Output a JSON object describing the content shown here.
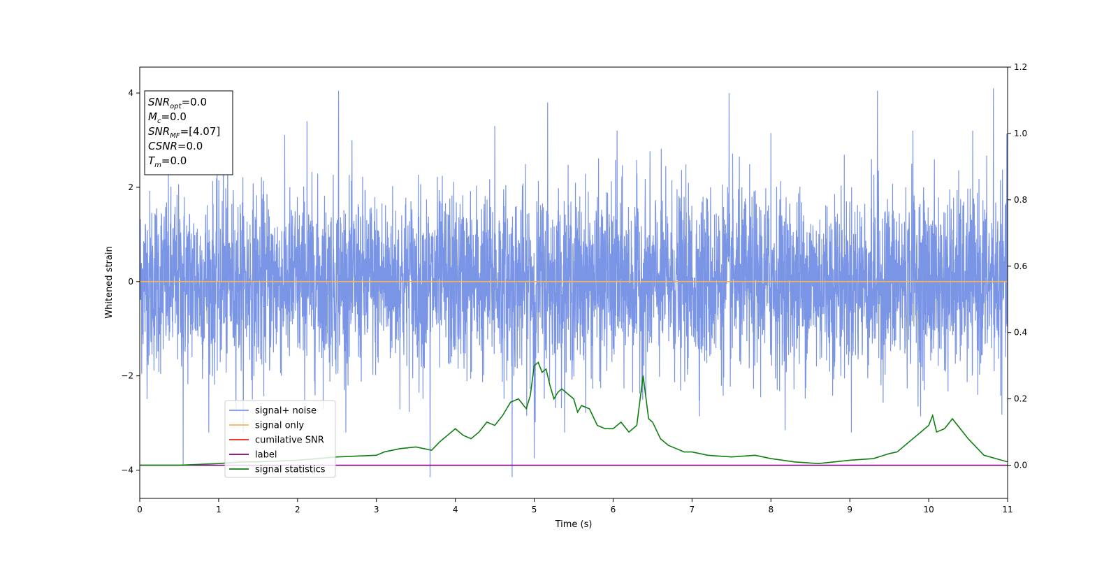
{
  "chart_data": {
    "type": "line",
    "title": "",
    "xlabel": "Time (s)",
    "ylabel": "Whitened strain",
    "xlim": [
      0,
      11
    ],
    "ylim": [
      -4.6,
      4.55
    ],
    "y2lim": [
      -0.1,
      1.2
    ],
    "xticks": [
      0,
      1,
      2,
      3,
      4,
      5,
      6,
      7,
      8,
      9,
      10,
      11
    ],
    "yticks": [
      -4,
      -2,
      0,
      2,
      4
    ],
    "y2ticks": [
      "0.0",
      "0.2",
      "0.4",
      "0.6",
      "0.8",
      "1.0",
      "1.2"
    ],
    "grid": false,
    "legend_position": "lower-left",
    "info_box": {
      "lines": [
        {
          "sym": "SNR",
          "sub": "opt",
          "value": "=0.0"
        },
        {
          "sym": "M",
          "sub": "c",
          "value": "=0.0"
        },
        {
          "sym": "SNR",
          "sub": "MF",
          "value": "=[4.07]"
        },
        {
          "sym": "CSNR",
          "sub": "",
          "value": "=0.0"
        },
        {
          "sym": "T",
          "sub": "m",
          "value": "=0.0"
        }
      ]
    },
    "series": [
      {
        "name": "signal+ noise",
        "color": "#7a94e6",
        "axis": "left",
        "kind": "noise",
        "envelope": {
          "typical": 1.7,
          "peaks": [
            [
              2.52,
              4.05
            ],
            [
              5.17,
              3.8
            ],
            [
              7.47,
              4.0
            ],
            [
              9.35,
              4.05
            ],
            [
              10.82,
              4.1
            ],
            [
              0.55,
              -3.9
            ],
            [
              3.68,
              -4.15
            ],
            [
              4.72,
              -4.15
            ],
            [
              5.0,
              -3.75
            ],
            [
              1.06,
              3.4
            ],
            [
              2.12,
              3.4
            ],
            [
              4.5,
              3.3
            ],
            [
              6.05,
              3.2
            ],
            [
              8.0,
              3.15
            ],
            [
              9.8,
              3.2
            ]
          ]
        }
      },
      {
        "name": "signal only",
        "color": "#f5b455",
        "axis": "left",
        "x": [
          0,
          11
        ],
        "y": [
          0,
          0
        ]
      },
      {
        "name": "cumilative SNR",
        "color": "#e8201b",
        "axis": "left",
        "x": [],
        "y": []
      },
      {
        "name": "label",
        "color": "#800080",
        "axis": "right",
        "x": [
          0,
          11
        ],
        "y": [
          0,
          0
        ]
      },
      {
        "name": "signal statistics",
        "color": "#0f7d0f",
        "axis": "right",
        "x": [
          0,
          0.5,
          1.0,
          1.3,
          1.5,
          2.0,
          2.5,
          3.0,
          3.1,
          3.3,
          3.5,
          3.7,
          3.8,
          3.9,
          4.0,
          4.1,
          4.2,
          4.3,
          4.4,
          4.5,
          4.6,
          4.7,
          4.8,
          4.9,
          4.95,
          5.0,
          5.05,
          5.1,
          5.15,
          5.2,
          5.25,
          5.3,
          5.35,
          5.4,
          5.5,
          5.55,
          5.6,
          5.7,
          5.8,
          5.9,
          6.0,
          6.1,
          6.2,
          6.3,
          6.38,
          6.45,
          6.5,
          6.6,
          6.7,
          6.8,
          6.9,
          7.0,
          7.2,
          7.5,
          7.8,
          8.0,
          8.3,
          8.6,
          8.8,
          9.0,
          9.3,
          9.5,
          9.6,
          9.7,
          9.8,
          9.9,
          10.0,
          10.05,
          10.1,
          10.2,
          10.3,
          10.5,
          10.7,
          11.0
        ],
        "y": [
          0.0,
          0.0,
          0.005,
          0.01,
          0.01,
          0.015,
          0.025,
          0.03,
          0.04,
          0.05,
          0.055,
          0.045,
          0.07,
          0.09,
          0.11,
          0.09,
          0.08,
          0.1,
          0.13,
          0.12,
          0.15,
          0.19,
          0.2,
          0.17,
          0.21,
          0.3,
          0.31,
          0.28,
          0.29,
          0.24,
          0.2,
          0.22,
          0.23,
          0.22,
          0.2,
          0.16,
          0.18,
          0.17,
          0.12,
          0.11,
          0.11,
          0.13,
          0.1,
          0.12,
          0.27,
          0.14,
          0.13,
          0.08,
          0.06,
          0.05,
          0.04,
          0.04,
          0.03,
          0.025,
          0.03,
          0.02,
          0.01,
          0.005,
          0.01,
          0.015,
          0.02,
          0.035,
          0.04,
          0.06,
          0.08,
          0.1,
          0.12,
          0.15,
          0.1,
          0.11,
          0.14,
          0.08,
          0.03,
          0.01
        ]
      }
    ]
  }
}
